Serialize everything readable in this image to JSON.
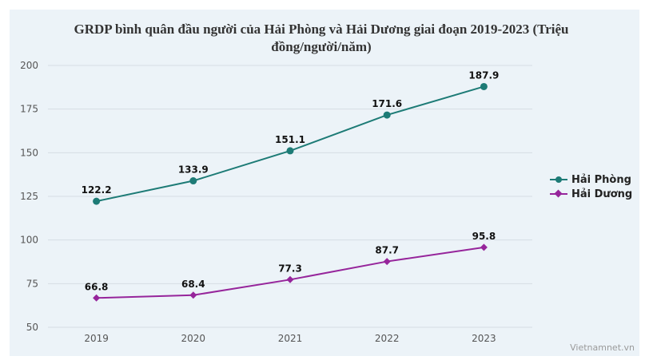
{
  "chart_data": {
    "type": "line",
    "title": "GRDP bình quân đầu người của Hải Phòng và Hải Dương giai đoạn 2019-2023 (Triệu đồng/người/năm)",
    "categories": [
      "2019",
      "2020",
      "2021",
      "2022",
      "2023"
    ],
    "ylim": [
      50,
      200
    ],
    "yticks": [
      50,
      75,
      100,
      125,
      150,
      175,
      200
    ],
    "grid": true,
    "legend_position": "right",
    "series": [
      {
        "name": "Hải Phòng",
        "values": [
          122.2,
          133.9,
          151.1,
          171.6,
          187.9
        ],
        "color": "#1d7b76",
        "marker": "circle"
      },
      {
        "name": "Hải Dương",
        "values": [
          66.8,
          68.4,
          77.3,
          87.7,
          95.8
        ],
        "color": "#96259b",
        "marker": "diamond"
      }
    ]
  },
  "credit": "Vietnamnet.vn"
}
